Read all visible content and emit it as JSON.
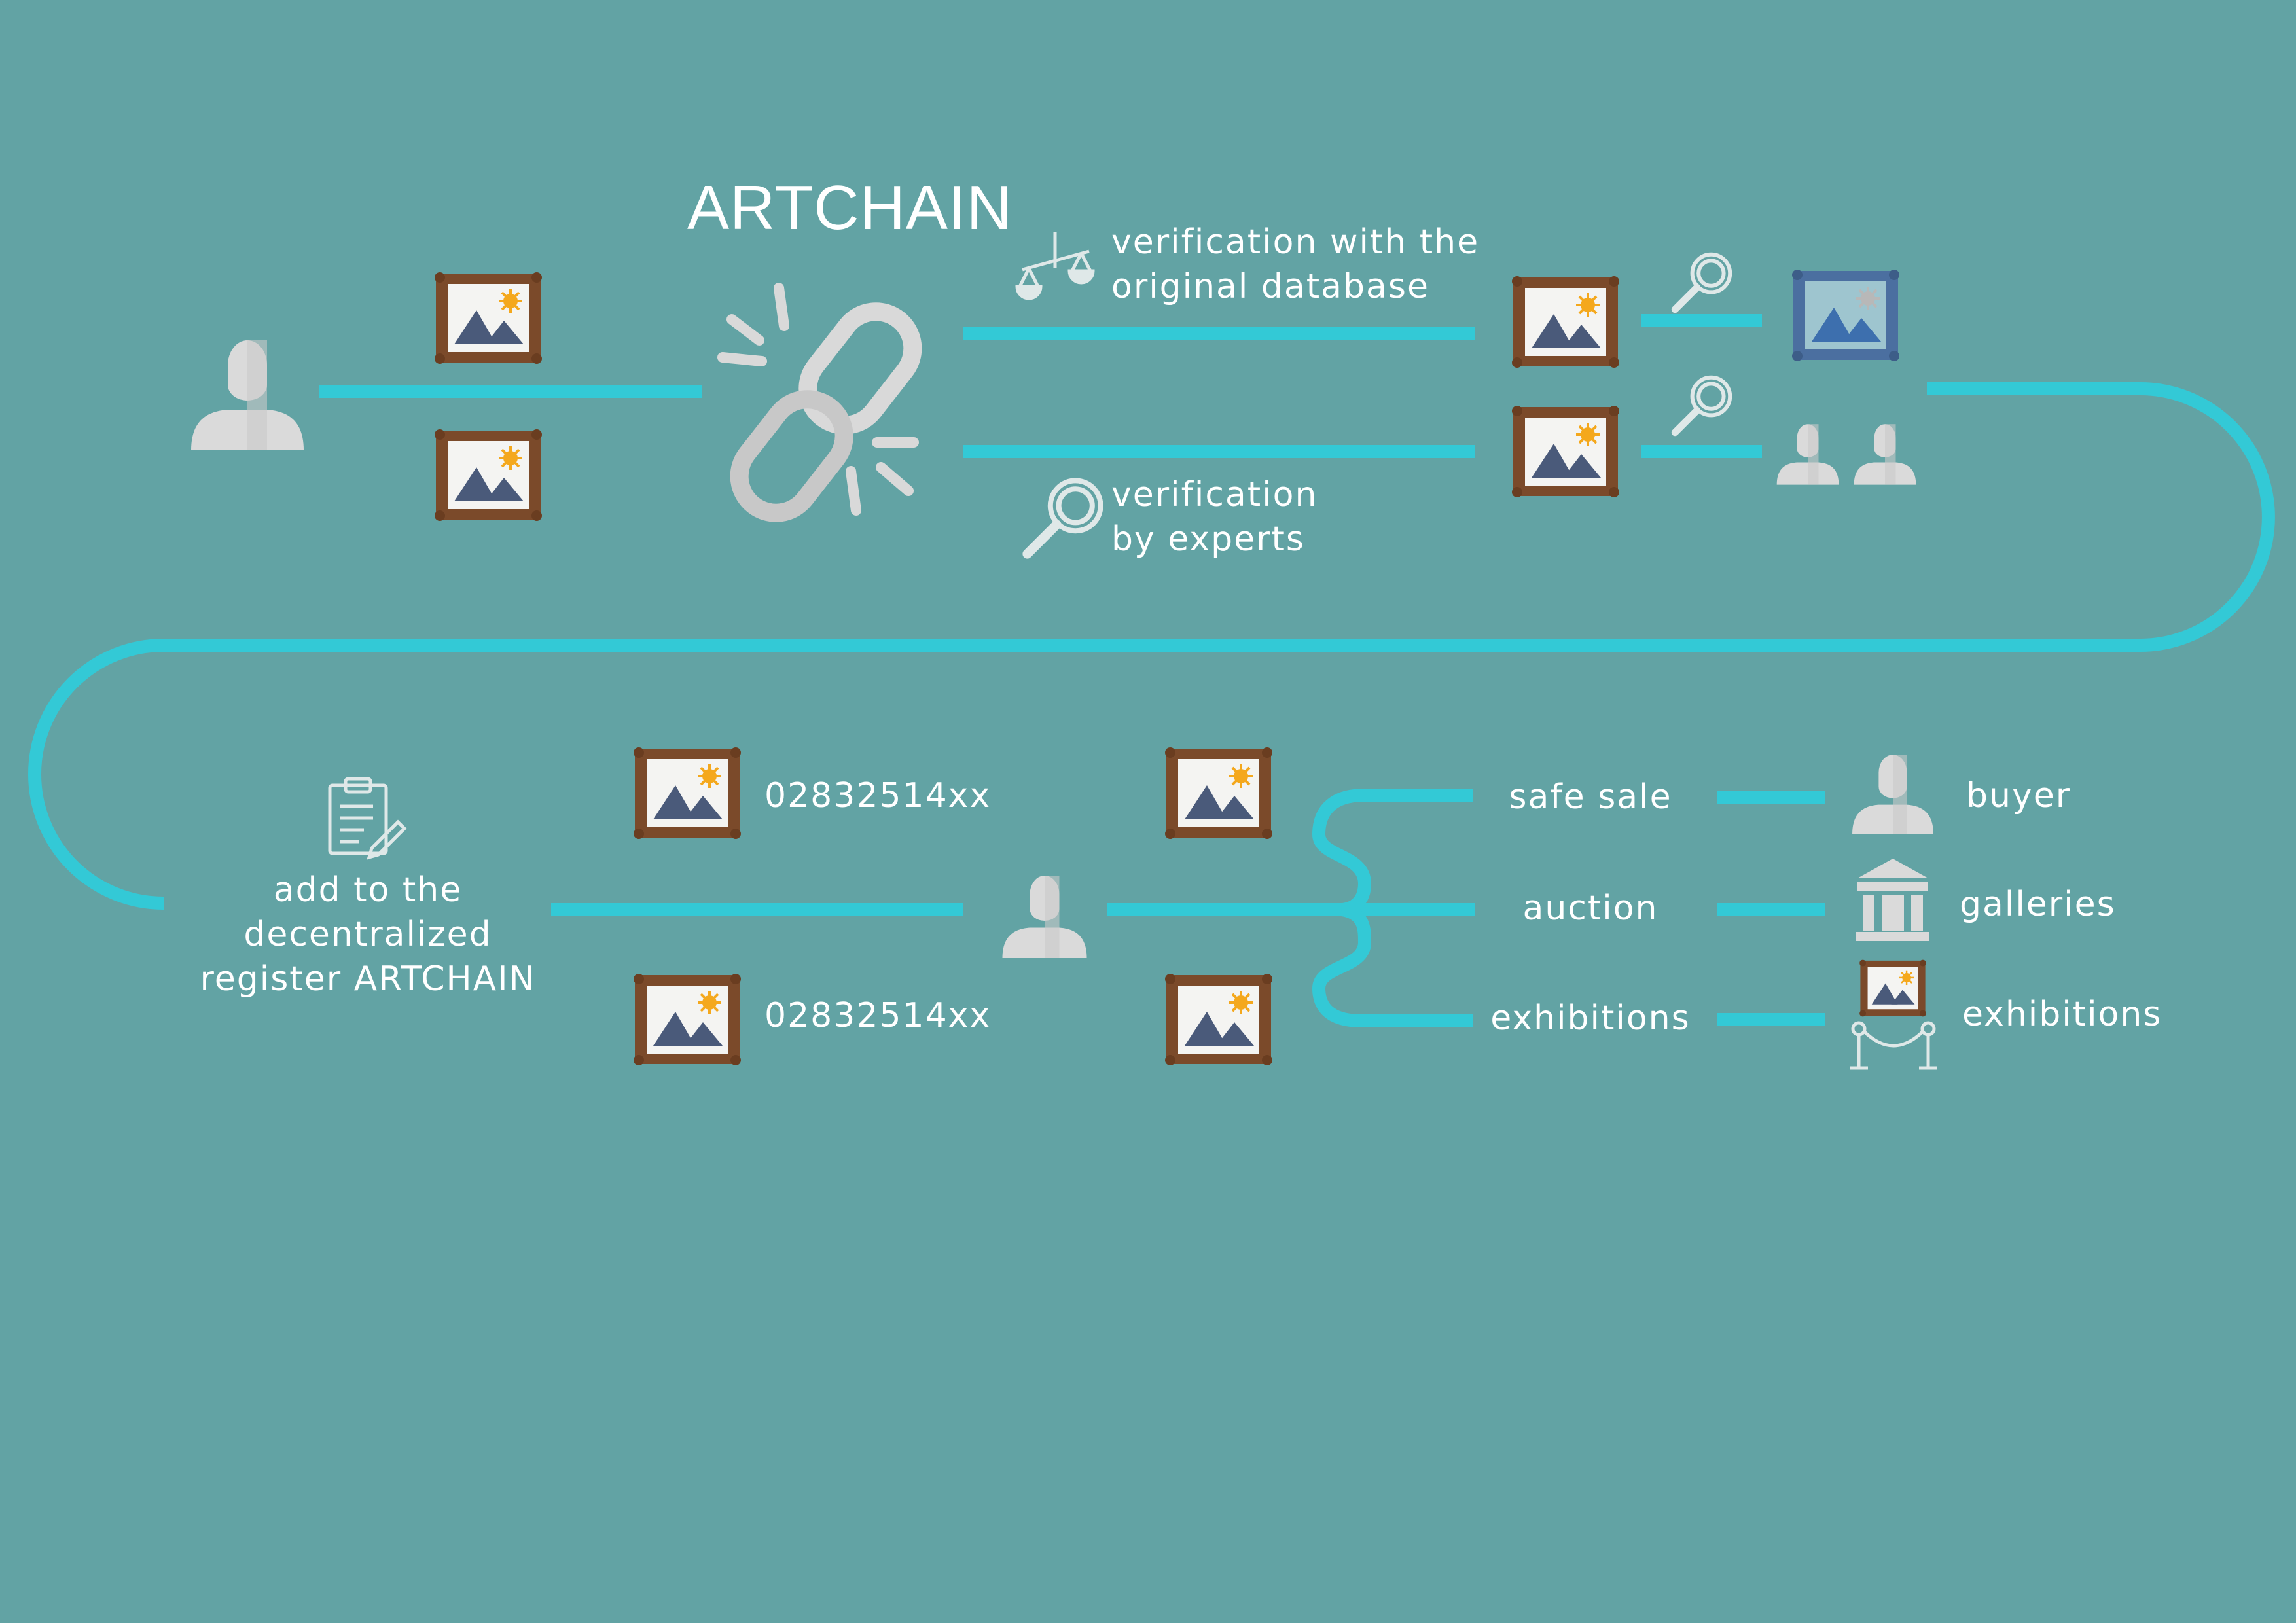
{
  "title": "ARTCHAIN",
  "steps": {
    "verify_database": [
      "verification with the",
      "original database"
    ],
    "verify_experts": [
      "verification",
      "by experts"
    ],
    "add_register": [
      "add to the",
      "decentralized",
      "register ARTCHAIN"
    ]
  },
  "codes": [
    "02832514xx",
    "02832514xx"
  ],
  "channels": [
    {
      "label": "safe sale",
      "target": "buyer",
      "target_icon": "person-icon"
    },
    {
      "label": "auction",
      "target": "galleries",
      "target_icon": "gallery-building-icon"
    },
    {
      "label": "exhibitions",
      "target": "exhibitions",
      "target_icon": "exhibition-icon"
    }
  ],
  "icons": [
    "person-icon",
    "painting-icon",
    "chain-link-icon",
    "scales-icon",
    "magnifier-icon",
    "clipboard-icon",
    "gallery-building-icon",
    "exhibition-icon"
  ],
  "colors": {
    "background": "#62a3a4",
    "connector": "#33c9d6",
    "frame": "#7b4a2a",
    "verified_frame": "#4b6fa0",
    "icon_grey": "#d9d9d9",
    "mountain": "#4a5a7a",
    "sun": "#f4a81d"
  }
}
